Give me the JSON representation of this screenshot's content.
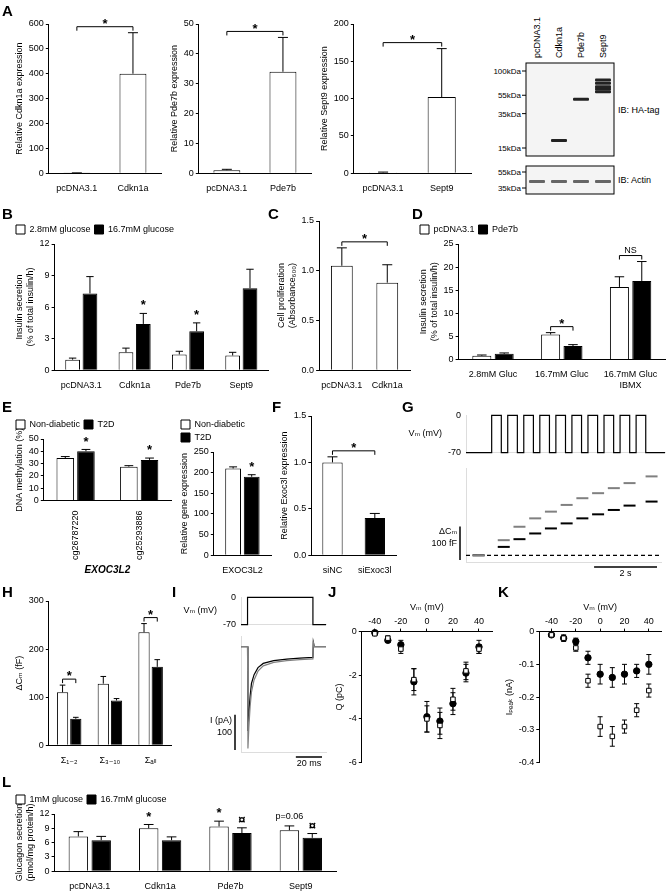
{
  "panel_labels": [
    "A",
    "B",
    "C",
    "D",
    "E",
    "F",
    "G",
    "H",
    "I",
    "J",
    "K",
    "L"
  ],
  "chart_data": [
    {
      "type": "bar",
      "y_label": "Relative Cdkn1a expression",
      "categories": [
        "pcDNA3.1",
        "Cdkn1a"
      ],
      "values": [
        1,
        400
      ],
      "errors": [
        0.3,
        165
      ],
      "colors": [
        "#ffffff",
        "#ffffff"
      ],
      "ylim": [
        0,
        600
      ],
      "yticks": [
        0,
        100,
        200,
        300,
        400,
        500,
        600
      ],
      "grid": false,
      "annotations": [
        {
          "text": "*",
          "between": [
            "pcDNA3.1",
            "Cdkn1a"
          ]
        }
      ]
    },
    {
      "type": "bar",
      "y_label": "Relative Pde7b expression",
      "categories": [
        "pcDNA3.1",
        "Pde7b"
      ],
      "values": [
        1,
        34
      ],
      "errors": [
        0.3,
        11.5
      ],
      "colors": [
        "#ffffff",
        "#ffffff"
      ],
      "ylim": [
        0,
        50
      ],
      "yticks": [
        0,
        10,
        20,
        30,
        40,
        50
      ],
      "grid": false,
      "annotations": [
        {
          "text": "*",
          "between": [
            "pcDNA3.1",
            "Pde7b"
          ]
        }
      ]
    },
    {
      "type": "bar",
      "y_label": "Relative Sept9 expression",
      "categories": [
        "pcDNA3.1",
        "Sept9"
      ],
      "values": [
        1,
        102
      ],
      "errors": [
        0.5,
        65
      ],
      "colors": [
        "#ffffff",
        "#ffffff"
      ],
      "ylim": [
        0,
        200
      ],
      "yticks": [
        0,
        50,
        100,
        150,
        200
      ],
      "grid": false,
      "annotations": [
        {
          "text": "*",
          "between": [
            "pcDNA3.1",
            "Sept9"
          ]
        }
      ]
    },
    {
      "type": "bar",
      "y_label": [
        "Insulin secretion",
        "(% of total insulin/h)"
      ],
      "categories": [
        "pcDNA3.1",
        "Cdkn1a",
        "Pde7b",
        "Sept9"
      ],
      "series": [
        {
          "name": "2.8mM glucose",
          "color": "#ffffff",
          "values": [
            1.0,
            1.7,
            1.5,
            1.4
          ],
          "errors": [
            0.15,
            0.4,
            0.3,
            0.3
          ]
        },
        {
          "name": "16.7mM glucose",
          "color": "#000000",
          "values": [
            7.3,
            4.4,
            3.7,
            7.8
          ],
          "errors": [
            1.6,
            1.0,
            0.8,
            1.8
          ]
        }
      ],
      "ylim": [
        0,
        12
      ],
      "yticks": [
        0,
        3,
        6,
        9,
        12
      ],
      "grid": false,
      "legend": "top-left",
      "annotations": [
        {
          "text": "*",
          "category": "Cdkn1a",
          "series": "16.7mM glucose"
        },
        {
          "text": "*",
          "category": "Pde7b",
          "series": "16.7mM glucose"
        }
      ]
    },
    {
      "type": "bar",
      "y_label": [
        "Cell proliferation",
        "(Absorbance₆₀₀)"
      ],
      "categories": [
        "pcDNA3.1",
        "Cdkn1a"
      ],
      "values": [
        1.05,
        0.88
      ],
      "errors": [
        0.18,
        0.18
      ],
      "colors": [
        "#ffffff",
        "#ffffff"
      ],
      "ylim": [
        0,
        1.5
      ],
      "yticks": [
        {
          "value": 0,
          "label": "0.0"
        },
        0.5,
        {
          "value": 1,
          "label": "1.0"
        },
        1.5
      ],
      "grid": false,
      "annotations": [
        {
          "text": "*",
          "between": [
            "pcDNA3.1",
            "Cdkn1a"
          ]
        }
      ]
    },
    {
      "type": "bar",
      "y_label": [
        "Insulin secretion",
        "(% of total insulin/h)"
      ],
      "categories": [
        "2.8mM Gluc",
        "16.7mM Gluc",
        [
          "16.7mM Gluc",
          "IBMX"
        ]
      ],
      "series": [
        {
          "name": "pcDNA3.1",
          "color": "#ffffff",
          "values": [
            0.8,
            5.4,
            15.7
          ],
          "errors": [
            0.15,
            0.4,
            2.2
          ]
        },
        {
          "name": "Pde7b",
          "color": "#000000",
          "values": [
            1.2,
            2.9,
            17.0
          ],
          "errors": [
            0.2,
            0.3,
            4.2
          ]
        }
      ],
      "ylim": [
        0,
        25
      ],
      "yticks": [
        0,
        5,
        10,
        15,
        20,
        25
      ],
      "grid": false,
      "legend": "top-left",
      "annotations": [
        {
          "text": "*",
          "category": "16.7mM Gluc"
        },
        {
          "text": "NS",
          "category": [
            "16.7mM Gluc",
            "IBMX"
          ]
        }
      ]
    },
    {
      "type": "bar",
      "y_label": "DNA methylation (%)",
      "x_label": "EXOC3L2",
      "categories": [
        "cg26787220",
        "cg25293886"
      ],
      "series": [
        {
          "name": "Non-diabetic",
          "color": "#ffffff",
          "values": [
            34.5,
            27.5
          ],
          "errors": [
            1.2,
            0.8
          ]
        },
        {
          "name": "T2D",
          "color": "#000000",
          "values": [
            40,
            33
          ],
          "errors": [
            1.5,
            1.5
          ]
        }
      ],
      "ylim": [
        0,
        50
      ],
      "yticks": [
        0,
        10,
        20,
        30,
        40,
        50
      ],
      "grid": false,
      "legend": "top-left",
      "annotations": [
        {
          "text": "*",
          "category": "cg26787220",
          "series": "T2D"
        },
        {
          "text": "*",
          "category": "cg25293886",
          "series": "T2D"
        }
      ]
    },
    {
      "type": "bar",
      "y_label": "Relative gene expression",
      "categories": [
        "EXOC3L2"
      ],
      "series": [
        {
          "name": "Non-diabetic",
          "color": "#ffffff",
          "values": [
            210
          ],
          "errors": [
            4
          ]
        },
        {
          "name": "T2D",
          "color": "#000000",
          "values": [
            190
          ],
          "errors": [
            5
          ]
        }
      ],
      "ylim": [
        0,
        250
      ],
      "yticks": [
        0,
        50,
        100,
        150,
        200,
        250
      ],
      "grid": false,
      "legend": "top-left",
      "annotations": [
        {
          "text": "*",
          "category": "EXOC3L2",
          "series": "T2D"
        }
      ]
    },
    {
      "type": "bar",
      "y_label": "Relative Exoc3l expression",
      "categories": [
        "siNC",
        "siExoc3l"
      ],
      "values": [
        1.0,
        0.4
      ],
      "errors": [
        0.06,
        0.05
      ],
      "colors": [
        "#ffffff",
        "#000000"
      ],
      "ylim": [
        0,
        1.5
      ],
      "yticks": [
        {
          "value": 0,
          "label": "0.0"
        },
        0.5,
        {
          "value": 1,
          "label": "1.0"
        },
        1.5
      ],
      "grid": false,
      "annotations": [
        {
          "text": "*",
          "between": [
            "siNC",
            "siExoc3l"
          ]
        }
      ]
    },
    {
      "type": "line",
      "y_label": "Vₘ (mV)",
      "x": [
        0,
        0.8,
        0.8,
        1.1,
        1.1,
        1.3,
        1.3,
        1.6,
        1.6,
        1.8,
        1.8,
        2.1,
        2.1,
        2.3,
        2.3,
        2.6,
        2.6,
        2.8,
        2.8,
        3.1,
        3.1,
        3.3,
        3.3,
        3.6,
        3.6,
        3.8,
        3.8,
        4.1,
        4.1,
        4.3,
        4.3,
        4.6,
        4.6,
        4.8,
        4.8,
        5.1,
        5.1,
        5.3,
        5.3,
        5.6,
        5.6,
        6.2
      ],
      "values": [
        -70,
        -70,
        0,
        0,
        -70,
        -70,
        0,
        0,
        -70,
        -70,
        0,
        0,
        -70,
        -70,
        0,
        0,
        -70,
        -70,
        0,
        0,
        -70,
        -70,
        0,
        0,
        -70,
        -70,
        0,
        0,
        -70,
        -70,
        0,
        0,
        -70,
        -70,
        0,
        0,
        -70,
        -70,
        0,
        0,
        -70,
        -70
      ],
      "color": "#000000",
      "line_style": "solid",
      "xlim": [
        0,
        6.2
      ],
      "ylim": [
        -70,
        0
      ],
      "yticks": [
        -70,
        0
      ],
      "tick_labels": "y",
      "grid": false
    },
    {
      "type": "line",
      "y_label": "ΔCₘ",
      "series": [
        {
          "x": [
            0.4,
            1.2,
            1.7,
            2.2,
            2.7,
            3.2,
            3.7,
            4.2,
            4.7,
            5.2,
            5.9
          ],
          "values": [
            0,
            45,
            85,
            110,
            130,
            150,
            170,
            185,
            200,
            215,
            235
          ],
          "color": "#808080",
          "marker": "dash",
          "line_style": "none"
        },
        {
          "x": [
            0.4,
            1.2,
            1.7,
            2.2,
            2.7,
            3.2,
            3.7,
            4.2,
            4.7,
            5.2,
            5.9
          ],
          "values": [
            0,
            25,
            48,
            65,
            80,
            95,
            110,
            122,
            135,
            148,
            160
          ],
          "color": "#000000",
          "marker": "dash",
          "line_style": "none"
        },
        {
          "x": [
            0,
            6.2
          ],
          "values": [
            0,
            0
          ],
          "color": "#000000",
          "marker": "none",
          "line_style": "dashed"
        }
      ],
      "xlim": [
        0,
        6.2
      ],
      "ylim": [
        -20,
        260
      ],
      "tick_labels": false,
      "grid": false,
      "scale_bar": {
        "x": 2,
        "x_label": "2 s",
        "y": 100,
        "y_label": "100 fF"
      }
    },
    {
      "type": "bar",
      "y_label": "ΔCₘ (fF)",
      "categories": [
        "Σ₁₋₂",
        "Σ₃₋₁₀",
        "Σₐₗₗ"
      ],
      "series": [
        {
          "color": "#ffffff",
          "values": [
            110,
            128,
            235
          ],
          "errors": [
            15,
            15,
            18
          ]
        },
        {
          "color": "#000000",
          "values": [
            55,
            93,
            163
          ],
          "errors": [
            3,
            4,
            15
          ]
        }
      ],
      "ylim": [
        0,
        300
      ],
      "yticks": [
        0,
        100,
        200,
        300
      ],
      "grid": false,
      "annotations": [
        {
          "text": "*",
          "category": "Σ₁₋₂"
        },
        {
          "text": "*",
          "category": "Σₐₗₗ"
        }
      ]
    },
    {
      "type": "line",
      "y_label": "Vₘ (mV)",
      "x": [
        0,
        5,
        5,
        55,
        55,
        65
      ],
      "values": [
        -70,
        -70,
        0,
        0,
        -70,
        -70
      ],
      "color": "#000000",
      "line_style": "solid",
      "xlim": [
        0,
        65
      ],
      "ylim": [
        -70,
        0
      ],
      "yticks": [
        -70,
        0
      ],
      "tick_labels": "y",
      "grid": false
    },
    {
      "type": "line",
      "y_label": "I (pA)",
      "x": [
        0,
        5,
        5.3,
        6,
        7,
        8,
        10,
        13,
        17,
        25,
        35,
        45,
        55,
        55.3,
        56,
        65
      ],
      "series": [
        {
          "values": [
            0,
            0,
            -290,
            -230,
            -170,
            -130,
            -95,
            -70,
            -55,
            -45,
            -40,
            -37,
            -35,
            15,
            0,
            0
          ],
          "color": "#808080",
          "line_style": "solid"
        },
        {
          "values": [
            0,
            0,
            -240,
            -190,
            -140,
            -105,
            -80,
            -60,
            -48,
            -40,
            -36,
            -33,
            -31,
            12,
            0,
            0
          ],
          "color": "#000000",
          "line_style": "solid"
        }
      ],
      "xlim": [
        0,
        65
      ],
      "ylim": [
        -300,
        30
      ],
      "tick_labels": false,
      "grid": false,
      "scale_bar": {
        "x": 20,
        "x_label": "20 ms",
        "y": 100,
        "y_label": "100"
      }
    },
    {
      "type": "scatter",
      "x_label": "Vₘ (mV)",
      "y_label": "Q (pC)",
      "x": [
        -40,
        -30,
        -20,
        -10,
        0,
        10,
        20,
        30,
        40
      ],
      "series": [
        {
          "color": "#000000",
          "marker": "opensquare",
          "values": [
            -0.1,
            -0.3,
            -0.8,
            -2.2,
            -4.0,
            -4.3,
            -3.1,
            -1.8,
            -0.8
          ],
          "errors": [
            0.05,
            0.1,
            0.2,
            0.5,
            0.6,
            0.6,
            0.5,
            0.4,
            0.2
          ]
        },
        {
          "color": "#000000",
          "marker": "circle",
          "values": [
            -0.05,
            -0.4,
            -0.6,
            -2.3,
            -3.9,
            -4.1,
            -3.3,
            -1.9,
            -0.7
          ],
          "errors": [
            0.05,
            0.1,
            0.2,
            0.6,
            0.7,
            0.6,
            0.5,
            0.4,
            0.3
          ]
        }
      ],
      "xlim": [
        -50,
        50
      ],
      "xticks": [
        -40,
        -20,
        0,
        20,
        40
      ],
      "ylim": [
        -6,
        0
      ],
      "yticks": [
        -6,
        -4,
        -2,
        0
      ],
      "grid": false
    },
    {
      "type": "scatter",
      "x_label": "Vₘ (mV)",
      "y_label": "Iₚₑₐₖ (nA)",
      "x": [
        -40,
        -30,
        -20,
        -10,
        0,
        10,
        20,
        30,
        40
      ],
      "series": [
        {
          "color": "#000000",
          "marker": "opensquare",
          "values": [
            -0.01,
            -0.02,
            -0.05,
            -0.15,
            -0.29,
            -0.32,
            -0.29,
            -0.24,
            -0.18
          ],
          "errors": [
            0.005,
            0.01,
            0.01,
            0.02,
            0.03,
            0.03,
            0.02,
            0.02,
            0.02
          ]
        },
        {
          "color": "#000000",
          "marker": "circle",
          "values": [
            -0.01,
            -0.02,
            -0.03,
            -0.08,
            -0.13,
            -0.14,
            -0.13,
            -0.12,
            -0.1
          ],
          "errors": [
            0.005,
            0.005,
            0.01,
            0.02,
            0.03,
            0.03,
            0.03,
            0.02,
            0.03
          ]
        }
      ],
      "xlim": [
        -50,
        50
      ],
      "xticks": [
        -40,
        -20,
        0,
        20,
        40
      ],
      "ylim": [
        -0.4,
        0
      ],
      "yticks": [
        -0.4,
        -0.3,
        -0.2,
        -0.1,
        0
      ],
      "grid": false
    },
    {
      "type": "bar",
      "y_label": [
        "Glucagon secretion",
        "(pmol/mg protein/h)"
      ],
      "categories": [
        "pcDNA3.1",
        "Cdkn1a",
        "Pde7b",
        "Sept9"
      ],
      "series": [
        {
          "name": "1mM glucose",
          "color": "#ffffff",
          "values": [
            7.3,
            9.0,
            9.4,
            8.6
          ],
          "errors": [
            1.0,
            0.8,
            1.1,
            0.9
          ]
        },
        {
          "name": "16.7mM glucose",
          "color": "#000000",
          "values": [
            6.5,
            6.5,
            8.0,
            7.0
          ],
          "errors": [
            0.8,
            0.7,
            1.1,
            0.9
          ]
        }
      ],
      "ylim": [
        0,
        12
      ],
      "yticks": [
        0,
        3,
        6,
        9,
        12
      ],
      "grid": false,
      "legend": "top-left",
      "annotations": [
        {
          "text": "*",
          "category": "Cdkn1a",
          "series": "1mM glucose"
        },
        {
          "text": "*",
          "category": "Pde7b",
          "series": "1mM glucose"
        },
        {
          "text": "p=0.06",
          "category": "Sept9",
          "series": "1mM glucose"
        },
        {
          "text": "¤",
          "category": "Pde7b",
          "series": "16.7mM glucose"
        },
        {
          "text": "¤",
          "category": "Sept9",
          "series": "16.7mM glucose"
        }
      ]
    }
  ],
  "blot": {
    "lanes": [
      "pcDNA3.1",
      "Cdkn1a",
      "Pde7b",
      "Sept9"
    ],
    "panels": [
      {
        "label": "IB: HA-tag",
        "markers": [
          {
            "value": 100,
            "label": "100kDa"
          },
          {
            "value": 55,
            "label": "55kDa"
          },
          {
            "value": 35,
            "label": "35kDa"
          },
          {
            "value": 15,
            "label": "15kDa"
          }
        ],
        "bands": [
          {
            "lane": "Cdkn1a",
            "kDa": [
              18
            ]
          },
          {
            "lane": "Pde7b",
            "kDa": [
              50
            ]
          },
          {
            "lane": "Sept9",
            "kDa": [
              60,
              64,
              68,
              74,
              80
            ]
          }
        ]
      },
      {
        "label": "IB: Actin",
        "markers": [
          {
            "value": 55,
            "label": "55kDa"
          },
          {
            "value": 35,
            "label": "35kDa"
          }
        ],
        "bands": [
          {
            "lane": "pcDNA3.1",
            "kDa": [
              42
            ]
          },
          {
            "lane": "Cdkn1a",
            "kDa": [
              42
            ]
          },
          {
            "lane": "Pde7b",
            "kDa": [
              42
            ]
          },
          {
            "lane": "Sept9",
            "kDa": [
              42
            ]
          }
        ]
      }
    ]
  }
}
